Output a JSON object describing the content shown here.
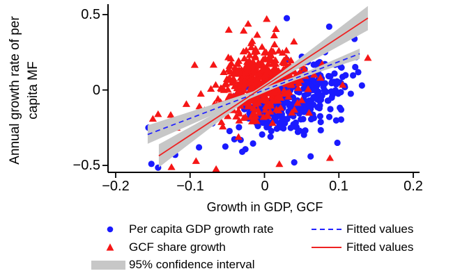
{
  "chart_data": {
    "type": "scatter",
    "title": "",
    "xlabel": "Growth in GDP, GCF",
    "ylabel": "Annual growth rate of per capita MF",
    "ylabel_lines": [
      "Annual growth rate of per",
      "capita MF"
    ],
    "xlim": [
      -0.212,
      0.208
    ],
    "ylim": [
      -0.55,
      0.57
    ],
    "x_ticks": [
      -0.2,
      -0.1,
      0,
      0.1,
      0.2
    ],
    "x_tick_labels": [
      "−0.2",
      "−0.1",
      "0",
      "0.1",
      "0.2"
    ],
    "y_ticks": [
      0.5,
      0,
      -0.5
    ],
    "y_tick_labels": [
      "0.5",
      "0",
      "−0.5"
    ],
    "grid": false,
    "legend_position": "bottom",
    "colors": {
      "blue": "#1a1aff",
      "red": "#f51616",
      "blue_line": "#2222ff",
      "red_line": "#ee2222",
      "ci_gray": "#c7c7c7",
      "axis": "#000000"
    },
    "series": [
      {
        "name": "Per capita GDP growth rate",
        "marker": "circle",
        "color": "#1a1aff",
        "cluster": {
          "n": 320,
          "cx": 0.038,
          "cy": -0.062,
          "sx": 0.037,
          "sy": 0.125,
          "corr": 0.42,
          "xmin": -0.165,
          "xmax": 0.145,
          "ymin": -0.52,
          "ymax": 0.49,
          "seed": 101
        },
        "outliers": [
          [
            0.03,
            0.476
          ],
          [
            0.087,
            0.42
          ],
          [
            0.121,
            0.339
          ],
          [
            0.122,
            0.152
          ],
          [
            0.126,
            0.118
          ],
          [
            0.109,
            0.098
          ],
          [
            0.103,
            -0.196
          ],
          [
            0.116,
            -0.025
          ],
          [
            0.131,
            0.03
          ],
          [
            -0.156,
            -0.25
          ],
          [
            -0.152,
            -0.49
          ],
          [
            -0.143,
            -0.515
          ],
          [
            -0.145,
            -0.3
          ],
          [
            0.062,
            -0.44
          ],
          [
            0.098,
            -0.35
          ],
          [
            -0.12,
            -0.43
          ],
          [
            -0.088,
            -0.38
          ],
          [
            0.04,
            -0.48
          ]
        ]
      },
      {
        "name": "GCF share growth",
        "marker": "triangle",
        "color": "#f51616",
        "cluster": {
          "n": 430,
          "cx": -0.009,
          "cy": 0.048,
          "sx": 0.028,
          "sy": 0.118,
          "corr": 0.22,
          "xmin": -0.155,
          "xmax": 0.142,
          "ymin": -0.525,
          "ymax": 0.485,
          "seed": 202
        },
        "outliers": [
          [
            0.003,
            0.472
          ],
          [
            -0.022,
            0.44
          ],
          [
            -0.048,
            0.4
          ],
          [
            0.139,
            0.214
          ],
          [
            0.105,
            0.035
          ],
          [
            -0.143,
            -0.159
          ],
          [
            -0.126,
            -0.164
          ],
          [
            -0.118,
            -0.25
          ],
          [
            -0.125,
            -0.51
          ],
          [
            -0.092,
            -0.47
          ],
          [
            -0.065,
            -0.523
          ],
          [
            0.088,
            -0.45
          ],
          [
            0.02,
            -0.49
          ],
          [
            -0.105,
            -0.092
          ],
          [
            0.06,
            -0.15
          ],
          [
            -0.15,
            -0.19
          ]
        ]
      }
    ],
    "fits": [
      {
        "name": "Fitted values",
        "style": "dashed",
        "color": "#2222ff",
        "slope": 1.88,
        "intercept": 0.0,
        "x_range": [
          -0.157,
          0.128
        ],
        "ci": {
          "pinch_x": 0.03,
          "half_width_min": 0.013,
          "flare": 0.32
        }
      },
      {
        "name": "Fitted values",
        "style": "solid",
        "color": "#ee2222",
        "slope": 3.25,
        "intercept": 0.025,
        "x_range": [
          -0.142,
          0.139
        ],
        "ci": {
          "pinch_x": -0.005,
          "half_width_min": 0.013,
          "flare": 0.55
        }
      }
    ],
    "ci": {
      "label": "95% confidence interval",
      "color": "#c7c7c7"
    }
  }
}
